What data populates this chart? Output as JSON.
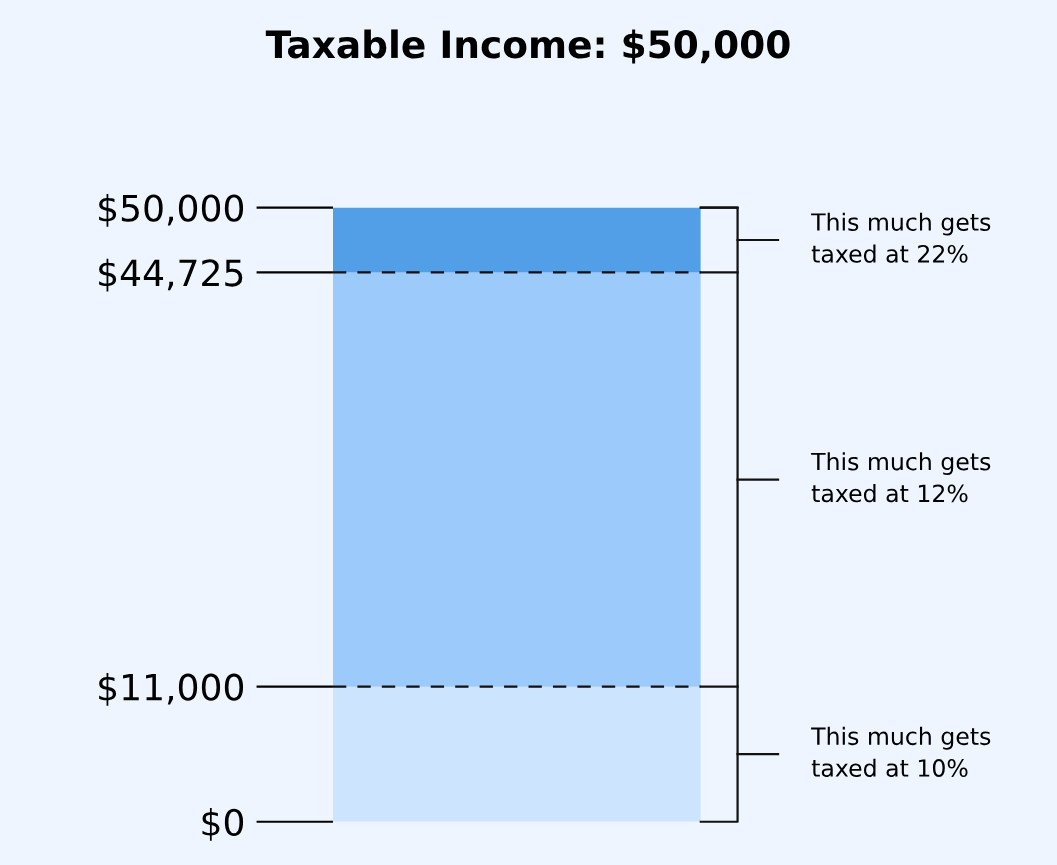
{
  "chart_data": {
    "type": "bar",
    "stacked": true,
    "title": "Taxable Income: $50,000",
    "categories": [
      null
    ],
    "series": [
      {
        "color": "#cce4fd",
        "values": [
          11000
        ]
      },
      {
        "color": "#9ccbfb",
        "values": [
          33725
        ]
      },
      {
        "color": "#529fe8",
        "values": [
          5275
        ]
      }
    ],
    "ylim": [
      0,
      50000
    ],
    "yticks": [
      {
        "value": 0,
        "label": "$0"
      },
      {
        "value": 11000,
        "label": "$11,000"
      },
      {
        "value": 44725,
        "label": "$44,725"
      },
      {
        "value": 50000,
        "label": "$50,000"
      }
    ],
    "ref_lines": [
      {
        "axis": "y",
        "value": 11000,
        "line_style": "dashed",
        "color": "#111111"
      },
      {
        "axis": "y",
        "value": 44725,
        "line_style": "dashed",
        "color": "#111111"
      }
    ],
    "annotations": [
      "This much gets\ntaxed at 22%",
      "This much gets\ntaxed at 12%",
      "This much gets\ntaxed at 10%"
    ],
    "grid": false,
    "legend": false
  }
}
